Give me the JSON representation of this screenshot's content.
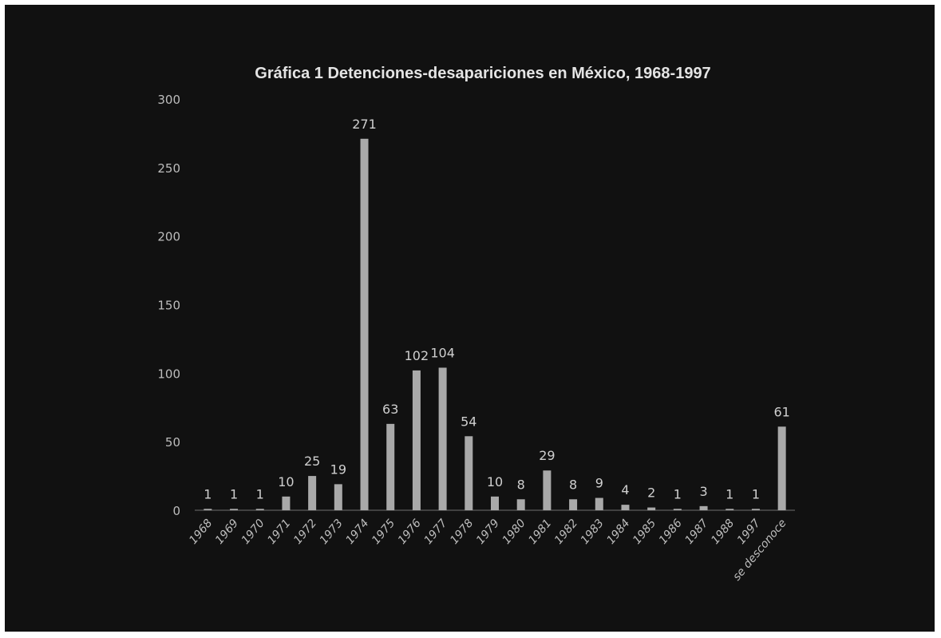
{
  "chart_data": {
    "type": "bar",
    "title": "Gráfica 1 Detenciones-desapariciones en México, 1968-1997",
    "xlabel": "",
    "ylabel": "",
    "categories": [
      "1968",
      "1969",
      "1970",
      "1971",
      "1972",
      "1973",
      "1974",
      "1975",
      "1976",
      "1977",
      "1978",
      "1979",
      "1980",
      "1981",
      "1982",
      "1983",
      "1984",
      "1985",
      "1986",
      "1987",
      "1988",
      "1997",
      "se desconoce"
    ],
    "values": [
      1,
      1,
      1,
      10,
      25,
      19,
      271,
      63,
      102,
      104,
      54,
      10,
      8,
      29,
      8,
      9,
      4,
      2,
      1,
      3,
      1,
      1,
      61
    ],
    "ylim": [
      0,
      300
    ],
    "yticks": [
      0,
      50,
      100,
      150,
      200,
      250,
      300
    ],
    "grid": false,
    "legend": "none",
    "colors": {
      "background": "#111111",
      "bar": "#a9a9a9",
      "text": "#bdbdbd"
    }
  }
}
